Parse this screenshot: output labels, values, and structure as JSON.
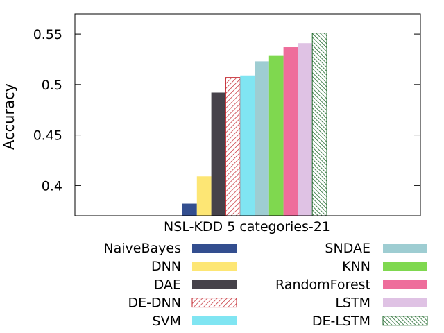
{
  "chart_data": {
    "type": "bar",
    "title": "",
    "xlabel": "NSL-KDD 5 categories-21",
    "ylabel": "Accuracy",
    "categories": [
      "NSL-KDD 5 categories-21"
    ],
    "ylim": [
      0.37,
      0.57
    ],
    "yticks": [
      0.4,
      0.45,
      0.5,
      0.55
    ],
    "ytick_labels": [
      "0.4",
      "0.45",
      "0.5",
      "0.55"
    ],
    "grid": false,
    "legend_position": "below-plot, two columns",
    "series": [
      {
        "name": "NaiveBayes",
        "values": [
          0.382
        ],
        "color": "#334e8f",
        "pattern": "solid"
      },
      {
        "name": "DNN",
        "values": [
          0.409
        ],
        "color": "#fde674",
        "pattern": "solid"
      },
      {
        "name": "DAE",
        "values": [
          0.492
        ],
        "color": "#46424a",
        "pattern": "solid"
      },
      {
        "name": "DE-DNN",
        "values": [
          0.507
        ],
        "color": "#c4272f",
        "pattern": "hatch"
      },
      {
        "name": "SVM",
        "values": [
          0.509
        ],
        "color": "#80e5f2",
        "pattern": "solid"
      },
      {
        "name": "SNDAE",
        "values": [
          0.523
        ],
        "color": "#9ecdd2",
        "pattern": "solid"
      },
      {
        "name": "KNN",
        "values": [
          0.529
        ],
        "color": "#7fd84f",
        "pattern": "solid"
      },
      {
        "name": "RandomForest",
        "values": [
          0.537
        ],
        "color": "#ee6d9b",
        "pattern": "solid"
      },
      {
        "name": "LSTM",
        "values": [
          0.541
        ],
        "color": "#dfc2e4",
        "pattern": "solid"
      },
      {
        "name": "DE-LSTM",
        "values": [
          0.551
        ],
        "color": "#1f6a2b",
        "pattern": "hatch"
      }
    ]
  }
}
